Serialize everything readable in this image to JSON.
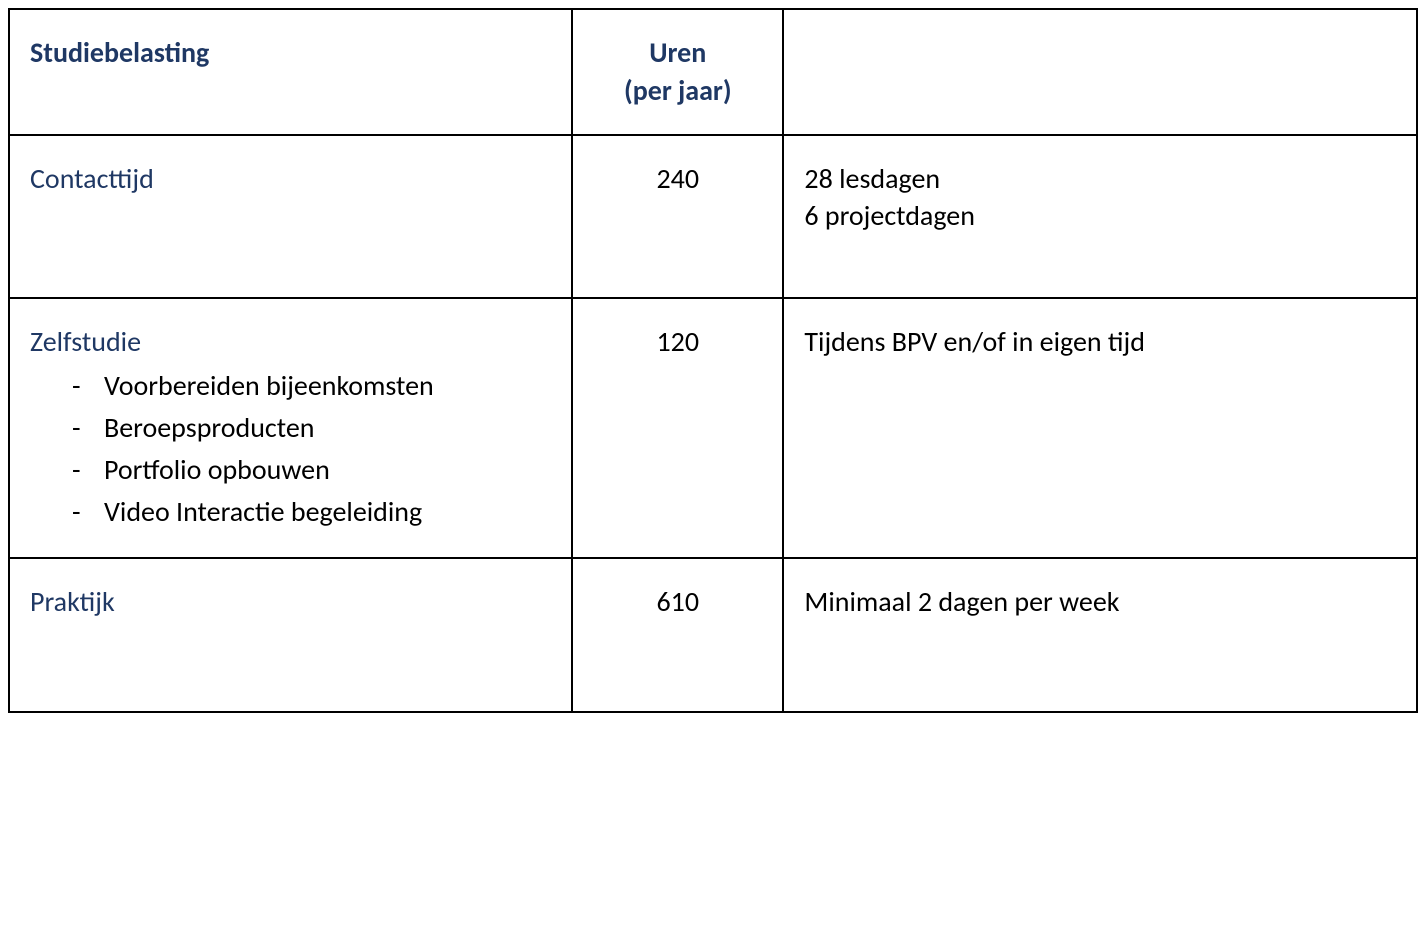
{
  "table": {
    "border_color": "#000000",
    "header_text_color": "#1f3864",
    "body_text_color": "#000000",
    "background_color": "#ffffff",
    "font_size_pt": 21,
    "column_widths_pct": [
      40,
      15,
      45
    ],
    "header": {
      "col1": "Studiebelasting",
      "col2_line1": "Uren",
      "col2_line2": "(per jaar)",
      "col3": ""
    },
    "rows": [
      {
        "title": "Contacttijd",
        "subitems": [],
        "hours": "240",
        "details_lines": [
          "28 lesdagen",
          "6 projectdagen"
        ]
      },
      {
        "title": "Zelfstudie",
        "subitems": [
          "Voorbereiden bijeenkomsten",
          "Beroepsproducten",
          "Portfolio opbouwen",
          "Video Interactie begeleiding"
        ],
        "hours": "120",
        "details_lines": [
          "Tijdens BPV en/of in eigen tijd"
        ]
      },
      {
        "title": "Praktijk",
        "subitems": [],
        "hours": "610",
        "details_lines": [
          "Minimaal 2 dagen per week"
        ]
      }
    ]
  }
}
